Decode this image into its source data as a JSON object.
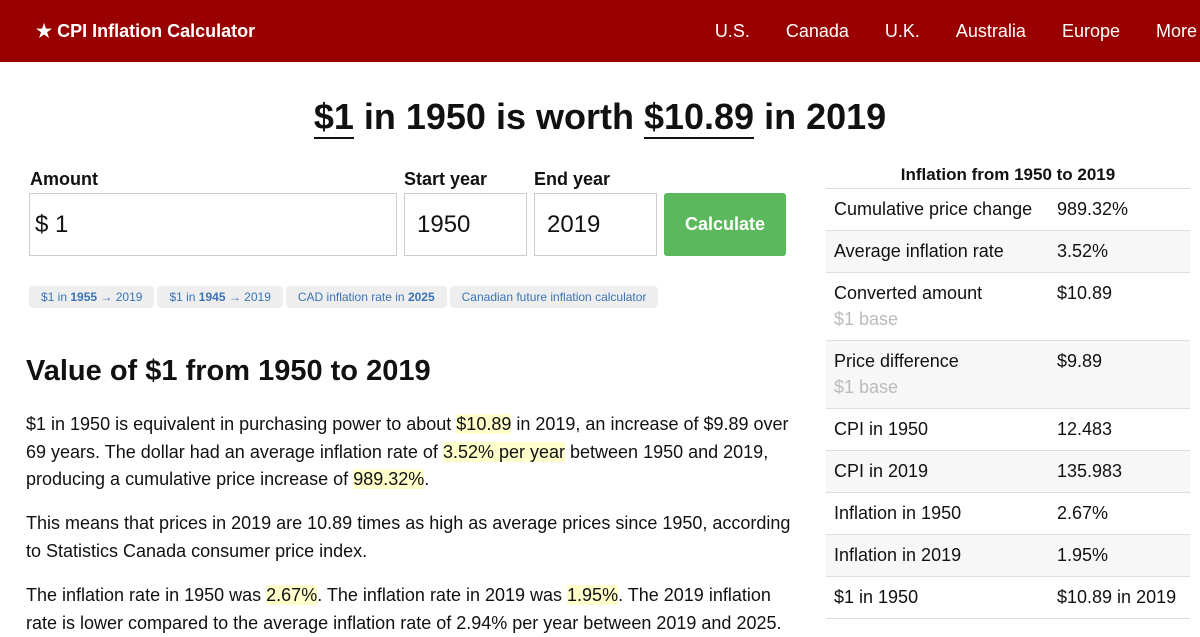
{
  "nav": {
    "brand": "★ CPI Inflation Calculator",
    "links": [
      "U.S.",
      "Canada",
      "U.K.",
      "Australia",
      "Europe",
      "More"
    ]
  },
  "headline": {
    "pre": "$1",
    "mid": " in 1950 is worth ",
    "value": "$10.89",
    "post": " in 2019"
  },
  "form": {
    "amount_label": "Amount",
    "amount_value": "$ 1",
    "start_label": "Start year",
    "start_value": "1950",
    "end_label": "End year",
    "end_value": "2019",
    "calculate": "Calculate"
  },
  "chips": [
    {
      "a": "$1 in ",
      "b": "1955",
      "c": " → 2019"
    },
    {
      "a": "$1 in ",
      "b": "1945",
      "c": " → 2019"
    },
    {
      "a": "CAD inflation rate in ",
      "b": "2025",
      "c": ""
    },
    {
      "a": "Canadian future inflation calculator",
      "b": "",
      "c": ""
    }
  ],
  "article": {
    "title": "Value of $1 from 1950 to 2019",
    "p1": [
      "$1 in 1950 is equivalent in purchasing power to about ",
      "$10.89",
      " in 2019, an increase of $9.89 over 69 years. The dollar had an average inflation rate of ",
      "3.52% per year",
      " between 1950 and 2019, producing a cumulative price increase of ",
      "989.32%",
      "."
    ],
    "p2": "This means that prices in 2019 are 10.89 times as high as average prices since 1950, according to Statistics Canada consumer price index.",
    "p3": [
      "The inflation rate in 1950 was ",
      "2.67%",
      ". The inflation rate in 2019 was ",
      "1.95%",
      ". The 2019 inflation rate is lower compared to the average inflation rate of 2.94% per year between 2019 and 2025."
    ]
  },
  "sidebar": {
    "title": "Inflation from 1950 to 2019",
    "rows": [
      {
        "k": "Cumulative price change",
        "v": "989.32%",
        "sub": ""
      },
      {
        "k": "Average inflation rate",
        "v": "3.52%",
        "sub": ""
      },
      {
        "k": "Converted amount",
        "v": "$10.89",
        "sub": "$1 base"
      },
      {
        "k": "Price difference",
        "v": "$9.89",
        "sub": "$1 base"
      },
      {
        "k": "CPI in 1950",
        "v": "12.483",
        "sub": ""
      },
      {
        "k": "CPI in 2019",
        "v": "135.983",
        "sub": ""
      },
      {
        "k": "Inflation in 1950",
        "v": "2.67%",
        "sub": ""
      },
      {
        "k": "Inflation in 2019",
        "v": "1.95%",
        "sub": ""
      },
      {
        "k": "$1 in 1950",
        "v": "$10.89 in 2019",
        "sub": ""
      }
    ]
  }
}
